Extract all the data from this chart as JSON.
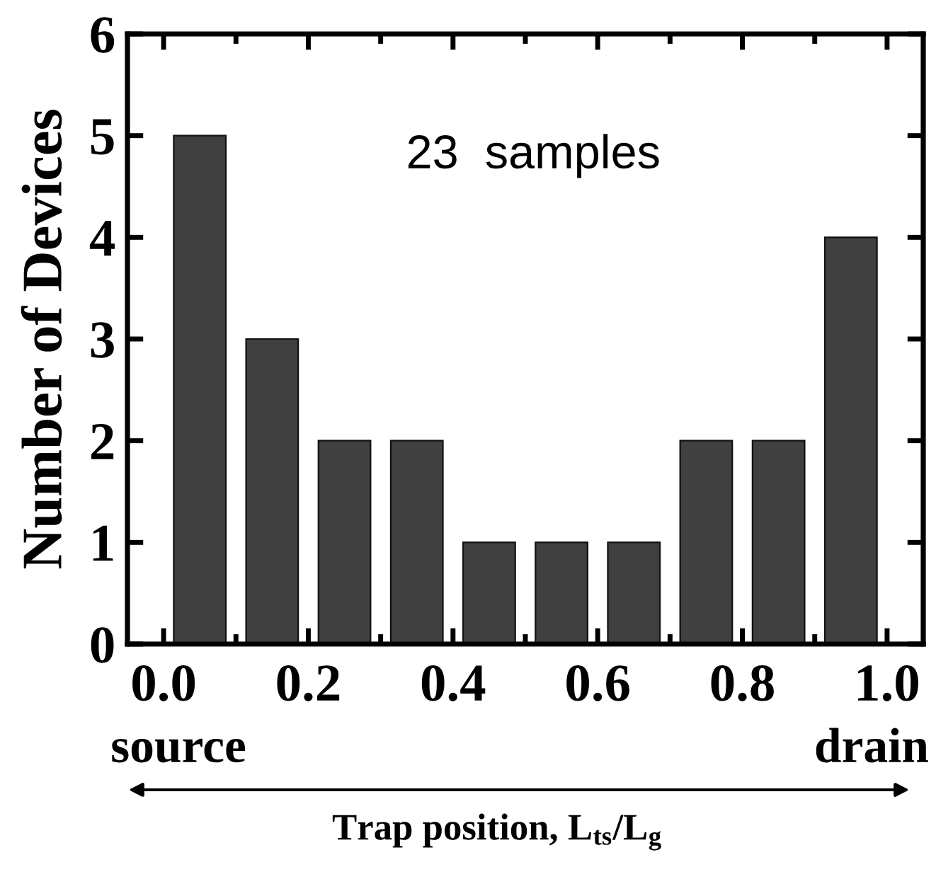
{
  "chart_data": {
    "type": "histogram",
    "bins": [
      0,
      0.1,
      0.2,
      0.3,
      0.4,
      0.5,
      0.6,
      0.7,
      0.8,
      0.9,
      1.0
    ],
    "values": [
      5,
      3,
      2,
      2,
      1,
      1,
      1,
      2,
      2,
      4
    ],
    "color": "#404040",
    "xlabel": "Trap position, L$_{ts}$/L$_{g}$",
    "ylabel": "Number of Devices",
    "xlim": [
      -0.05,
      1.05
    ],
    "ylim": [
      0,
      6
    ],
    "xticks": [
      {
        "value": 0,
        "label": "0.0"
      },
      0.2,
      0.4,
      0.6,
      0.8,
      {
        "value": 1,
        "label": "1.0"
      }
    ],
    "yticks": [
      0,
      1,
      2,
      3,
      4,
      5,
      6
    ],
    "annotations": [
      "23  samples",
      "source",
      "drain"
    ]
  }
}
